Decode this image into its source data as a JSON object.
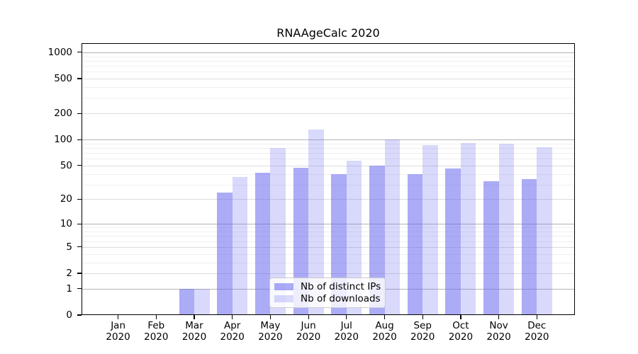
{
  "chart_data": {
    "type": "bar",
    "title": "RNAAgeCalc 2020",
    "x_categories": [
      "Jan",
      "Feb",
      "Mar",
      "Apr",
      "May",
      "Jun",
      "Jul",
      "Aug",
      "Sep",
      "Oct",
      "Nov",
      "Dec"
    ],
    "x_sub_label": "2020",
    "series": [
      {
        "name": "Nb of distinct IPs",
        "color": "#6666ee",
        "alpha": 0.55,
        "values": [
          0,
          0,
          1,
          24,
          41,
          47,
          40,
          50,
          40,
          46,
          33,
          35
        ]
      },
      {
        "name": "Nb of downloads",
        "color": "#6666ee",
        "alpha": 0.25,
        "values": [
          0,
          0,
          1,
          37,
          80,
          131,
          57,
          100,
          86,
          92,
          89,
          81
        ]
      }
    ],
    "y_axis": {
      "scale": "log10(1+value)",
      "tick_values": [
        0,
        1,
        2,
        5,
        10,
        20,
        50,
        100,
        200,
        500,
        1000
      ],
      "gridlines_major": [
        1,
        10,
        100,
        1000
      ],
      "gridlines_mid": [
        2,
        5,
        20,
        50,
        200,
        500
      ],
      "gridlines_minor": [
        3,
        4,
        6,
        7,
        8,
        9,
        30,
        40,
        60,
        70,
        80,
        90,
        300,
        400,
        600,
        700,
        800,
        900
      ],
      "top_value": 1270
    },
    "legend_position": "lower center",
    "colors": {
      "grid_major": "#b4b4b4",
      "grid_mid": "#dcdcdc",
      "grid_minor": "#efefef",
      "spine": "#000000",
      "text": "#000000",
      "legend_border": "#cccccc"
    }
  }
}
